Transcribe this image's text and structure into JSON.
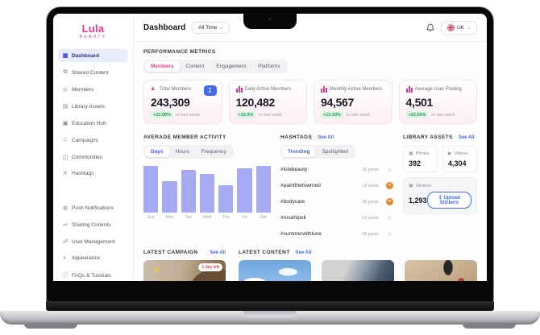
{
  "colors": {
    "brand_pink": "#e8368f",
    "accent_blue": "#3f6af5",
    "button_blue": "#4468f2",
    "positive_green": "#1fa254",
    "bar_fill": "#a6aaf3",
    "star_orange": "#f0831d",
    "badge_red": "#e24b4b"
  },
  "icon_glyphs": {
    "dashboard": "▦",
    "shared-content": "⧉",
    "members": "◎",
    "library-assets": "▤",
    "education-hub": "▣",
    "campaigns": "⚐",
    "communities": "◫",
    "hashtags": "#",
    "push-notifications": "◍",
    "sharing-controls": "⇌",
    "user-management": "☍",
    "appearance": "◐",
    "faqs": "ⓘ",
    "download": "↧",
    "upload": "↥",
    "chevron-down": "⌄",
    "star-outline": "☆",
    "star-filled": "★",
    "person": "♟",
    "photo": "▣",
    "video": "▶",
    "sticker": "▣"
  },
  "sidebar": {
    "logo": {
      "title": "Lula",
      "subtitle": "BEAUTY"
    },
    "items": [
      {
        "label": "Dashboard",
        "icon": "dashboard",
        "active": true
      },
      {
        "label": "Shared Content",
        "icon": "shared-content",
        "active": false
      },
      {
        "label": "Members",
        "icon": "members",
        "active": false
      },
      {
        "label": "Library Assets",
        "icon": "library-assets",
        "active": false
      },
      {
        "label": "Education Hub",
        "icon": "education-hub",
        "active": false
      },
      {
        "label": "Campaigns",
        "icon": "campaigns",
        "active": false
      },
      {
        "label": "Communities",
        "icon": "communities",
        "active": false
      },
      {
        "label": "Hashtags",
        "icon": "hashtags",
        "active": false
      }
    ],
    "secondary_items": [
      {
        "label": "Push Notifications",
        "icon": "push-notifications",
        "active": false
      },
      {
        "label": "Sharing Controls",
        "icon": "sharing-controls",
        "active": false
      },
      {
        "label": "User Management",
        "icon": "user-management",
        "active": false
      },
      {
        "label": "Appearance",
        "icon": "appearance",
        "active": false
      },
      {
        "label": "FAQs & Tutorials",
        "icon": "faqs",
        "active": false
      }
    ]
  },
  "header": {
    "title": "Dashboard",
    "time_filter": "All Time",
    "locale": "UK"
  },
  "performance": {
    "section_title": "PERFORMANCE METRICS",
    "tabs": [
      "Members",
      "Content",
      "Engagement",
      "Platforms"
    ],
    "active_tab": "Members",
    "cards": [
      {
        "label": "Total Members",
        "icon": "person",
        "value": "243,309",
        "change": "+23.09%",
        "change_note": "vs last week",
        "has_download": true
      },
      {
        "label": "Daily Active Members",
        "icon": "bars",
        "value": "120,482",
        "change": "+23.9%",
        "change_note": "vs last week",
        "has_download": false
      },
      {
        "label": "Monthly Active Members",
        "icon": "bars",
        "value": "94,567",
        "change": "+13.30%",
        "change_note": "vs last week",
        "has_download": false
      },
      {
        "label": "Average User Posting",
        "icon": "bars",
        "value": "4,501",
        "change": "+23.09%",
        "change_note": "vs last week",
        "has_download": false
      }
    ]
  },
  "activity": {
    "title": "AVERAGE MEMBER ACTIVITY",
    "tabs": [
      "Days",
      "Hours",
      "Frequency"
    ],
    "active_tab": "Days",
    "chart_data": {
      "type": "bar",
      "categories": [
        "Sun",
        "Mon",
        "Tue",
        "Wed",
        "Thu",
        "Fri",
        "Sat"
      ],
      "values": [
        100,
        67,
        91,
        83,
        59,
        95,
        100
      ],
      "title": "AVERAGE MEMBER ACTIVITY",
      "xlabel": "",
      "ylabel": "",
      "ylim": [
        0,
        100
      ],
      "grid": false,
      "legend": false
    }
  },
  "hashtags": {
    "title": "HASHTAGS",
    "see_all": "See All",
    "tabs": [
      "Trending",
      "Spotlighted"
    ],
    "active_tab": "Trending",
    "items": [
      {
        "tag": "#lulabeauty",
        "posts": "18 posts",
        "starred": false
      },
      {
        "tag": "#paintthetownred",
        "posts": "18 posts",
        "starred": true
      },
      {
        "tag": "#bodycare",
        "posts": "18 posts",
        "starred": true
      },
      {
        "tag": "#rosehipoil",
        "posts": "18 posts",
        "starred": false
      },
      {
        "tag": "#summerwithlune",
        "posts": "18 posts",
        "starred": false
      }
    ]
  },
  "library": {
    "title": "LIBRARY ASSETS",
    "see_all": "See All",
    "photos": {
      "label": "Photos",
      "value": "392"
    },
    "videos": {
      "label": "Videos",
      "value": "4,304"
    },
    "stickers": {
      "label": "Stickers",
      "value": "1,293",
      "button": "Upload Stickers"
    }
  },
  "campaign": {
    "title": "LATEST CAMPAIGN",
    "see_all": "See All",
    "badge": "1 day left"
  },
  "latest_content": {
    "title": "LATEST CONTENT",
    "see_all": "See All"
  }
}
